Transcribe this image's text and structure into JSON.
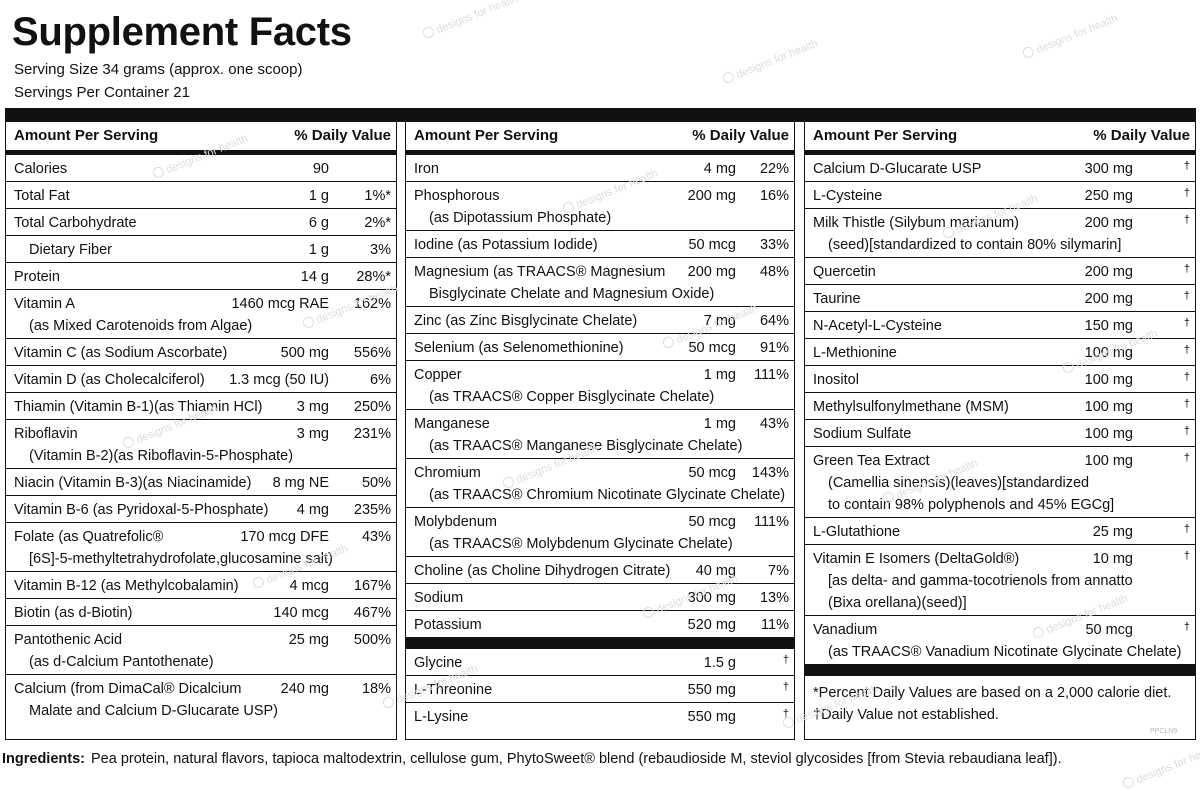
{
  "title": "Supplement Facts",
  "serving_size": "Serving Size 34 grams (approx. one scoop)",
  "servings_per_container": "Servings Per Container 21",
  "columns": [
    {
      "header_left": "Amount Per Serving",
      "header_right": "% Daily Value",
      "rows": [
        {
          "name": "Calories",
          "amount": "90",
          "dv": ""
        },
        {
          "name": "Total Fat",
          "amount": "1 g",
          "dv": "1%*"
        },
        {
          "name": "Total Carbohydrate",
          "amount": "6 g",
          "dv": "2%*"
        },
        {
          "name": "Dietary Fiber",
          "amount": "1 g",
          "dv": "3%",
          "indent": true
        },
        {
          "name": "Protein",
          "amount": "14 g",
          "dv": "28%*"
        },
        {
          "name": "Vitamin A",
          "cont": "(as Mixed Carotenoids from Algae)",
          "amount": "1460 mcg RAE",
          "dv": "162%"
        },
        {
          "name": "Vitamin C (as Sodium Ascorbate)",
          "amount": "500 mg",
          "dv": "556%"
        },
        {
          "name": "Vitamin D (as Cholecalciferol)",
          "amount": "1.3 mcg (50 IU)",
          "dv": "6%"
        },
        {
          "name": "Thiamin (Vitamin B-1)(as Thiamin HCl)",
          "amount": "3 mg",
          "dv": "250%"
        },
        {
          "name": "Riboflavin",
          "cont": "(Vitamin B-2)(as Riboflavin-5-Phosphate)",
          "amount": "3 mg",
          "dv": "231%"
        },
        {
          "name": "Niacin (Vitamin B-3)(as Niacinamide)",
          "amount": "8 mg NE",
          "dv": "50%"
        },
        {
          "name": "Vitamin B-6 (as Pyridoxal-5-Phosphate)",
          "amount": "4 mg",
          "dv": "235%"
        },
        {
          "name": "Folate (as Quatrefolic®",
          "cont": "[6S]-5-methyltetrahydrofolate,glucosamine salt)",
          "amount": "170 mcg DFE",
          "dv": "43%"
        },
        {
          "name": "Vitamin B-12 (as Methylcobalamin)",
          "amount": "4 mcg",
          "dv": "167%"
        },
        {
          "name": "Biotin (as d-Biotin)",
          "amount": "140 mcg",
          "dv": "467%"
        },
        {
          "name": "Pantothenic Acid",
          "cont": "(as d-Calcium Pantothenate)",
          "amount": "25 mg",
          "dv": "500%"
        },
        {
          "name": "Calcium (from DimaCal® Dicalcium",
          "cont": "Malate and Calcium D-Glucarate USP)",
          "amount": "240 mg",
          "dv": "18%"
        }
      ]
    },
    {
      "header_left": "Amount Per Serving",
      "header_right": "% Daily Value",
      "rows": [
        {
          "name": "Iron",
          "amount": "4 mg",
          "dv": "22%"
        },
        {
          "name": "Phosphorous",
          "cont": "(as Dipotassium Phosphate)",
          "amount": "200 mg",
          "dv": "16%"
        },
        {
          "name": "Iodine (as Potassium Iodide)",
          "amount": "50 mcg",
          "dv": "33%"
        },
        {
          "name": "Magnesium (as TRAACS® Magnesium",
          "cont": "Bisglycinate Chelate and Magnesium Oxide)",
          "amount": "200 mg",
          "dv": "48%"
        },
        {
          "name": "Zinc (as Zinc Bisglycinate Chelate)",
          "amount": "7 mg",
          "dv": "64%"
        },
        {
          "name": "Selenium (as Selenomethionine)",
          "amount": "50 mcg",
          "dv": "91%"
        },
        {
          "name": "Copper",
          "cont": "(as TRAACS® Copper Bisglycinate Chelate)",
          "amount": "1 mg",
          "dv": "111%"
        },
        {
          "name": "Manganese",
          "cont": "(as TRAACS® Manganese Bisglycinate Chelate)",
          "amount": "1 mg",
          "dv": "43%"
        },
        {
          "name": "Chromium",
          "cont": "(as TRAACS® Chromium Nicotinate Glycinate Chelate)",
          "amount": "50 mcg",
          "dv": "143%"
        },
        {
          "name": "Molybdenum",
          "cont": "(as TRAACS® Molybdenum Glycinate Chelate)",
          "amount": "50 mcg",
          "dv": "111%"
        },
        {
          "name": "Choline (as Choline Dihydrogen Citrate)",
          "amount": "40 mg",
          "dv": "7%"
        },
        {
          "name": "Sodium",
          "amount": "300 mg",
          "dv": "13%"
        },
        {
          "name": "Potassium",
          "amount": "520 mg",
          "dv": "11%",
          "thick_below": true
        },
        {
          "name": "Glycine",
          "amount": "1.5 g",
          "dv": "†",
          "dagger": true
        },
        {
          "name": "L-Threonine",
          "amount": "550 mg",
          "dv": "†",
          "dagger": true
        },
        {
          "name": "L-Lysine",
          "amount": "550 mg",
          "dv": "†",
          "dagger": true
        }
      ]
    },
    {
      "header_left": "Amount Per Serving",
      "header_right": "% Daily Value",
      "rows": [
        {
          "name": "Calcium D-Glucarate USP",
          "amount": "300 mg",
          "dv": "†"
        },
        {
          "name": "L-Cysteine",
          "amount": "250 mg",
          "dv": "†"
        },
        {
          "name": "Milk Thistle (Silybum marianum)",
          "cont": "(seed)[standardized to contain 80% silymarin]",
          "amount": "200 mg",
          "dv": "†"
        },
        {
          "name": "Quercetin",
          "amount": "200 mg",
          "dv": "†"
        },
        {
          "name": "Taurine",
          "amount": "200 mg",
          "dv": "†"
        },
        {
          "name": "N-Acetyl-L-Cysteine",
          "amount": "150 mg",
          "dv": "†"
        },
        {
          "name": "L-Methionine",
          "amount": "100 mg",
          "dv": "†"
        },
        {
          "name": "Inositol",
          "amount": "100 mg",
          "dv": "†"
        },
        {
          "name": "Methylsulfonylmethane (MSM)",
          "amount": "100 mg",
          "dv": "†"
        },
        {
          "name": "Sodium Sulfate",
          "amount": "100 mg",
          "dv": "†"
        },
        {
          "name": "Green Tea Extract",
          "cont": "(Camellia sinensis)(leaves)[standardized",
          "cont2": "to contain 98% polyphenols and 45% EGCg]",
          "amount": "100 mg",
          "dv": "†"
        },
        {
          "name": "L-Glutathione",
          "amount": "25 mg",
          "dv": "†"
        },
        {
          "name": "Vitamin E Isomers (DeltaGold®)",
          "cont": "[as delta- and gamma-tocotrienols from annatto",
          "cont2": "(Bixa orellana)(seed)]",
          "amount": "10 mg",
          "dv": "†"
        },
        {
          "name": "Vanadium",
          "cont": "(as TRAACS® Vanadium Nicotinate Glycinate Chelate)",
          "amount": "50 mcg",
          "dv": "†",
          "thick_below": true
        }
      ],
      "footnotes": [
        "*Percent Daily Values are based on a 2,000 calorie diet.",
        "†Daily Value not established."
      ]
    }
  ],
  "ingredients_label": "Ingredients:",
  "ingredients_text": "Pea protein, natural flavors, tapioca maltodextrin, cellulose gum, PhytoSweet® blend (rebaudioside M, steviol glycosides [from Stevia rebaudiana leaf]).",
  "product_code": "PPCLN9",
  "watermark_text": "designs for health"
}
